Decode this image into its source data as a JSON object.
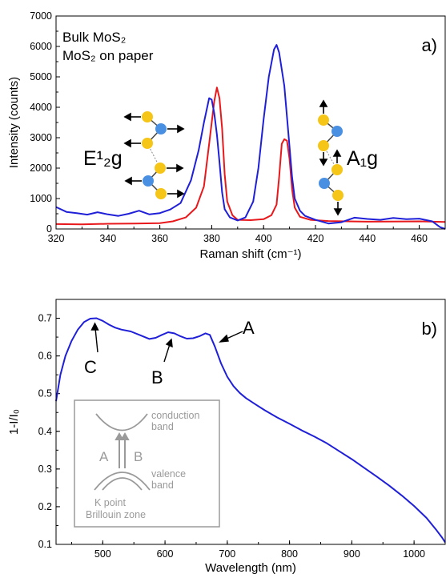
{
  "colors": {
    "bulk": "#e8191c",
    "paper": "#1f1fd8",
    "axis": "#000000",
    "inset": "#9a9a9a",
    "atom_s": "#f5c518",
    "atom_mo": "#4a90e2"
  },
  "chart_data": [
    {
      "type": "line",
      "panel_label": "a)",
      "xlabel": "Raman shift (cm⁻¹)",
      "ylabel": "Intensity (counts)",
      "xlim": [
        320,
        470
      ],
      "ylim": [
        0,
        7000
      ],
      "xticks": [
        "320",
        "340",
        "360",
        "380",
        "400",
        "420",
        "440",
        "460"
      ],
      "yticks": [
        "0",
        "1000",
        "2000",
        "3000",
        "4000",
        "5000",
        "6000",
        "7000"
      ],
      "grid": false,
      "legend_position": "top-left",
      "mode_labels": {
        "e2g": "E¹₂g",
        "a1g": "A₁g"
      },
      "series": [
        {
          "name": "Bulk MoS₂",
          "color": "#e8191c",
          "points": [
            [
              320,
              160
            ],
            [
              330,
              150
            ],
            [
              340,
              170
            ],
            [
              350,
              180
            ],
            [
              360,
              190
            ],
            [
              365,
              250
            ],
            [
              370,
              380
            ],
            [
              374,
              700
            ],
            [
              377,
              1400
            ],
            [
              379,
              2800
            ],
            [
              381,
              4200
            ],
            [
              382,
              4650
            ],
            [
              383,
              4300
            ],
            [
              384,
              3300
            ],
            [
              385,
              1800
            ],
            [
              386,
              900
            ],
            [
              388,
              450
            ],
            [
              390,
              300
            ],
            [
              395,
              290
            ],
            [
              400,
              320
            ],
            [
              403,
              450
            ],
            [
              405,
              800
            ],
            [
              406,
              1700
            ],
            [
              407,
              2800
            ],
            [
              408,
              2950
            ],
            [
              409,
              2900
            ],
            [
              410,
              2300
            ],
            [
              411,
              1300
            ],
            [
              412,
              700
            ],
            [
              414,
              400
            ],
            [
              418,
              300
            ],
            [
              425,
              260
            ],
            [
              440,
              240
            ],
            [
              460,
              250
            ],
            [
              470,
              230
            ]
          ]
        },
        {
          "name": "MoS₂ on paper",
          "color": "#1f1fd8",
          "points": [
            [
              320,
              720
            ],
            [
              324,
              560
            ],
            [
              328,
              520
            ],
            [
              332,
              470
            ],
            [
              336,
              550
            ],
            [
              340,
              480
            ],
            [
              344,
              430
            ],
            [
              348,
              500
            ],
            [
              352,
              600
            ],
            [
              356,
              480
            ],
            [
              360,
              520
            ],
            [
              364,
              640
            ],
            [
              368,
              850
            ],
            [
              372,
              1600
            ],
            [
              375,
              2600
            ],
            [
              377,
              3500
            ],
            [
              379,
              4300
            ],
            [
              380,
              4250
            ],
            [
              381,
              3800
            ],
            [
              382,
              3100
            ],
            [
              383,
              2200
            ],
            [
              384,
              1200
            ],
            [
              385,
              650
            ],
            [
              387,
              380
            ],
            [
              390,
              280
            ],
            [
              393,
              380
            ],
            [
              396,
              900
            ],
            [
              398,
              2000
            ],
            [
              400,
              3600
            ],
            [
              402,
              5000
            ],
            [
              404,
              5900
            ],
            [
              405,
              6050
            ],
            [
              406,
              5800
            ],
            [
              408,
              4700
            ],
            [
              410,
              2700
            ],
            [
              411,
              1700
            ],
            [
              412,
              1000
            ],
            [
              414,
              600
            ],
            [
              416,
              430
            ],
            [
              420,
              300
            ],
            [
              425,
              180
            ],
            [
              430,
              220
            ],
            [
              435,
              370
            ],
            [
              440,
              330
            ],
            [
              445,
              300
            ],
            [
              450,
              360
            ],
            [
              455,
              320
            ],
            [
              460,
              340
            ],
            [
              465,
              250
            ],
            [
              468,
              60
            ],
            [
              470,
              0
            ]
          ]
        }
      ]
    },
    {
      "type": "line",
      "panel_label": "b)",
      "xlabel": "Wavelength (nm)",
      "ylabel": "1-I/I₀",
      "xlim": [
        425,
        1050
      ],
      "ylim": [
        0.1,
        0.75
      ],
      "xticks": [
        "500",
        "600",
        "700",
        "800",
        "900",
        "1000"
      ],
      "yticks": [
        "0.1",
        "0.2",
        "0.3",
        "0.4",
        "0.5",
        "0.6",
        "0.7"
      ],
      "grid": false,
      "annotations": [
        "A",
        "B",
        "C"
      ],
      "inset": {
        "labels": [
          "conduction",
          "band",
          "valence",
          "band",
          "K point",
          "Brillouin zone",
          "A",
          "B"
        ]
      },
      "series": [
        {
          "color": "#1f1fd8",
          "points": [
            [
              425,
              0.48
            ],
            [
              432,
              0.55
            ],
            [
              440,
              0.6
            ],
            [
              450,
              0.64
            ],
            [
              460,
              0.67
            ],
            [
              470,
              0.69
            ],
            [
              480,
              0.699
            ],
            [
              490,
              0.7
            ],
            [
              500,
              0.693
            ],
            [
              510,
              0.683
            ],
            [
              520,
              0.675
            ],
            [
              530,
              0.67
            ],
            [
              545,
              0.665
            ],
            [
              560,
              0.655
            ],
            [
              575,
              0.645
            ],
            [
              585,
              0.648
            ],
            [
              595,
              0.656
            ],
            [
              605,
              0.663
            ],
            [
              615,
              0.66
            ],
            [
              625,
              0.652
            ],
            [
              635,
              0.646
            ],
            [
              645,
              0.647
            ],
            [
              655,
              0.652
            ],
            [
              665,
              0.66
            ],
            [
              672,
              0.656
            ],
            [
              680,
              0.625
            ],
            [
              690,
              0.58
            ],
            [
              700,
              0.545
            ],
            [
              710,
              0.52
            ],
            [
              720,
              0.502
            ],
            [
              730,
              0.488
            ],
            [
              745,
              0.472
            ],
            [
              760,
              0.456
            ],
            [
              780,
              0.437
            ],
            [
              800,
              0.42
            ],
            [
              820,
              0.402
            ],
            [
              840,
              0.386
            ],
            [
              860,
              0.368
            ],
            [
              880,
              0.347
            ],
            [
              900,
              0.326
            ],
            [
              920,
              0.303
            ],
            [
              940,
              0.28
            ],
            [
              960,
              0.256
            ],
            [
              980,
              0.23
            ],
            [
              1000,
              0.202
            ],
            [
              1020,
              0.17
            ],
            [
              1035,
              0.14
            ],
            [
              1045,
              0.118
            ],
            [
              1050,
              0.105
            ]
          ]
        }
      ]
    }
  ]
}
